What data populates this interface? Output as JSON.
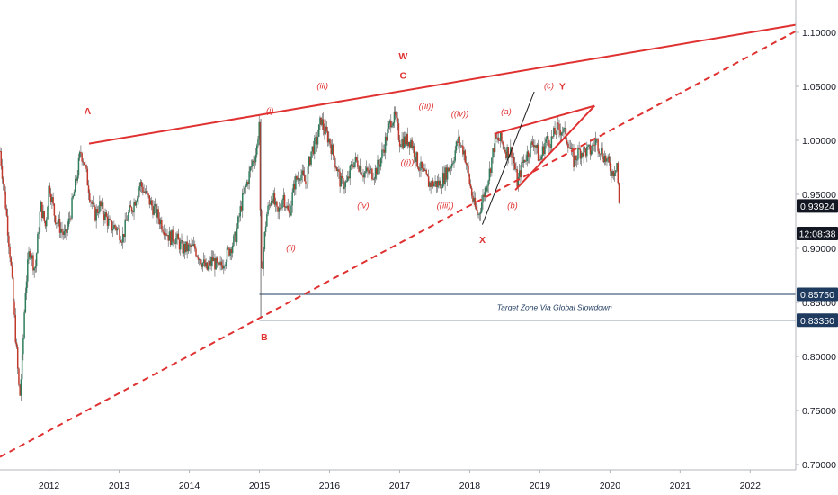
{
  "chart_data": {
    "type": "candlestick",
    "title": "",
    "y_axis": {
      "ticks": [
        "0.70000",
        "0.75000",
        "0.80000",
        "0.85000",
        "0.90000",
        "0.95000",
        "1.00000",
        "1.05000",
        "1.10000"
      ],
      "ylim": [
        0.695,
        1.125
      ]
    },
    "x_axis": {
      "ticks": [
        "2012",
        "2013",
        "2014",
        "2015",
        "2016",
        "2017",
        "2018",
        "2019",
        "2020",
        "2021",
        "2022"
      ],
      "xlim": [
        2011.3,
        2022.65
      ]
    },
    "price_series": [
      [
        2011.3,
        0.99
      ],
      [
        2011.38,
        0.94
      ],
      [
        2011.45,
        0.89
      ],
      [
        2011.52,
        0.82
      ],
      [
        2011.58,
        0.76
      ],
      [
        2011.62,
        0.8
      ],
      [
        2011.66,
        0.86
      ],
      [
        2011.72,
        0.9
      ],
      [
        2011.8,
        0.88
      ],
      [
        2011.88,
        0.94
      ],
      [
        2011.95,
        0.92
      ],
      [
        2012.0,
        0.96
      ],
      [
        2012.08,
        0.93
      ],
      [
        2012.15,
        0.92
      ],
      [
        2012.23,
        0.91
      ],
      [
        2012.3,
        0.93
      ],
      [
        2012.38,
        0.96
      ],
      [
        2012.45,
        0.99
      ],
      [
        2012.5,
        0.98
      ],
      [
        2012.58,
        0.95
      ],
      [
        2012.65,
        0.93
      ],
      [
        2012.72,
        0.94
      ],
      [
        2012.8,
        0.93
      ],
      [
        2012.88,
        0.92
      ],
      [
        2012.95,
        0.92
      ],
      [
        2013.05,
        0.91
      ],
      [
        2013.12,
        0.93
      ],
      [
        2013.2,
        0.94
      ],
      [
        2013.3,
        0.96
      ],
      [
        2013.38,
        0.95
      ],
      [
        2013.46,
        0.94
      ],
      [
        2013.55,
        0.93
      ],
      [
        2013.63,
        0.92
      ],
      [
        2013.72,
        0.91
      ],
      [
        2013.8,
        0.91
      ],
      [
        2013.9,
        0.9
      ],
      [
        2014.0,
        0.9
      ],
      [
        2014.08,
        0.9
      ],
      [
        2014.16,
        0.89
      ],
      [
        2014.25,
        0.88
      ],
      [
        2014.33,
        0.89
      ],
      [
        2014.42,
        0.88
      ],
      [
        2014.5,
        0.89
      ],
      [
        2014.58,
        0.9
      ],
      [
        2014.66,
        0.91
      ],
      [
        2014.74,
        0.94
      ],
      [
        2014.82,
        0.96
      ],
      [
        2014.9,
        0.98
      ],
      [
        2014.96,
        0.99
      ],
      [
        2015.0,
        1.02
      ],
      [
        2015.02,
        0.87
      ],
      [
        2015.06,
        0.9
      ],
      [
        2015.1,
        0.93
      ],
      [
        2015.18,
        0.95
      ],
      [
        2015.26,
        0.93
      ],
      [
        2015.34,
        0.95
      ],
      [
        2015.42,
        0.93
      ],
      [
        2015.5,
        0.96
      ],
      [
        2015.58,
        0.97
      ],
      [
        2015.66,
        0.96
      ],
      [
        2015.74,
        0.99
      ],
      [
        2015.82,
        1.0
      ],
      [
        2015.88,
        1.02
      ],
      [
        2015.92,
        1.01
      ],
      [
        2016.0,
        1.0
      ],
      [
        2016.08,
        0.98
      ],
      [
        2016.16,
        0.96
      ],
      [
        2016.25,
        0.96
      ],
      [
        2016.33,
        0.98
      ],
      [
        2016.4,
        0.98
      ],
      [
        2016.48,
        0.97
      ],
      [
        2016.56,
        0.97
      ],
      [
        2016.64,
        0.97
      ],
      [
        2016.72,
        0.98
      ],
      [
        2016.8,
        1.0
      ],
      [
        2016.88,
        1.02
      ],
      [
        2016.94,
        1.02
      ],
      [
        2017.0,
        1.0
      ],
      [
        2017.08,
        1.0
      ],
      [
        2017.16,
        1.0
      ],
      [
        2017.25,
        0.98
      ],
      [
        2017.33,
        0.97
      ],
      [
        2017.42,
        0.96
      ],
      [
        2017.5,
        0.96
      ],
      [
        2017.58,
        0.96
      ],
      [
        2017.66,
        0.97
      ],
      [
        2017.75,
        0.98
      ],
      [
        2017.83,
        1.0
      ],
      [
        2017.92,
        0.99
      ],
      [
        2018.0,
        0.96
      ],
      [
        2018.06,
        0.94
      ],
      [
        2018.12,
        0.93
      ],
      [
        2018.2,
        0.95
      ],
      [
        2018.28,
        0.97
      ],
      [
        2018.36,
        1.0
      ],
      [
        2018.44,
        1.0
      ],
      [
        2018.52,
        0.99
      ],
      [
        2018.6,
        0.99
      ],
      [
        2018.68,
        0.96
      ],
      [
        2018.76,
        0.98
      ],
      [
        2018.84,
        0.99
      ],
      [
        2018.92,
        1.0
      ],
      [
        2019.0,
        0.98
      ],
      [
        2019.08,
        1.0
      ],
      [
        2019.16,
        1.0
      ],
      [
        2019.24,
        1.01
      ],
      [
        2019.32,
        1.01
      ],
      [
        2019.4,
        1.0
      ],
      [
        2019.48,
        0.98
      ],
      [
        2019.56,
        0.99
      ],
      [
        2019.64,
        0.99
      ],
      [
        2019.72,
        0.99
      ],
      [
        2019.8,
        1.0
      ],
      [
        2019.88,
        0.99
      ],
      [
        2019.96,
        0.98
      ],
      [
        2020.04,
        0.97
      ],
      [
        2020.1,
        0.98
      ],
      [
        2020.13,
        0.939
      ]
    ],
    "lines": [
      {
        "name": "upper-resistance",
        "style": "solid",
        "x1": 2012.57,
        "y1": 0.997,
        "x2": 2022.65,
        "y2": 1.107
      },
      {
        "name": "lower-support",
        "style": "dashed",
        "x1": 2011.3,
        "y1": 0.707,
        "x2": 2022.65,
        "y2": 1.101
      },
      {
        "name": "wedge-upper",
        "style": "solid",
        "x1": 2018.35,
        "y1": 1.006,
        "x2": 2019.78,
        "y2": 1.032
      },
      {
        "name": "wedge-lower",
        "style": "solid",
        "x1": 2018.65,
        "y1": 0.954,
        "x2": 2019.78,
        "y2": 1.032
      },
      {
        "name": "c-wave-line",
        "style": "solid-black",
        "x1": 2018.18,
        "y1": 0.922,
        "x2": 2018.92,
        "y2": 1.045
      }
    ],
    "target_zone": {
      "upper": 0.8575,
      "lower": 0.8335,
      "x_start": 2015.0,
      "label": "Target Zone Via Global Slowdown"
    },
    "price_tags": [
      {
        "value": "0.93924",
        "price": 0.93924,
        "style": "dark"
      },
      {
        "value": "12:08:38",
        "price": 0.91374,
        "style": "dark"
      },
      {
        "value": "0.85750",
        "price": 0.8575,
        "style": "navy"
      },
      {
        "value": "0.83350",
        "price": 0.8335,
        "style": "navy"
      }
    ],
    "annotations": [
      {
        "text": "A",
        "x": 2012.55,
        "y": 1.024,
        "kind": "major"
      },
      {
        "text": "B",
        "x": 2015.07,
        "y": 0.815,
        "kind": "major"
      },
      {
        "text": "W",
        "x": 2017.05,
        "y": 1.075,
        "kind": "major"
      },
      {
        "text": "C",
        "x": 2017.05,
        "y": 1.057,
        "kind": "major"
      },
      {
        "text": "X",
        "x": 2018.18,
        "y": 0.905,
        "kind": "major"
      },
      {
        "text": "Y",
        "x": 2019.32,
        "y": 1.047,
        "kind": "major"
      },
      {
        "text": "(i)",
        "x": 2015.15,
        "y": 1.025,
        "kind": "minor"
      },
      {
        "text": "(ii)",
        "x": 2015.45,
        "y": 0.898,
        "kind": "minor"
      },
      {
        "text": "(iii)",
        "x": 2015.9,
        "y": 1.048,
        "kind": "minor"
      },
      {
        "text": "(iv)",
        "x": 2016.48,
        "y": 0.937,
        "kind": "minor"
      },
      {
        "text": "((i))",
        "x": 2017.11,
        "y": 0.977,
        "kind": "minor"
      },
      {
        "text": "((ii))",
        "x": 2017.38,
        "y": 1.029,
        "kind": "minor"
      },
      {
        "text": "((iii))",
        "x": 2017.65,
        "y": 0.937,
        "kind": "minor"
      },
      {
        "text": "((iv))",
        "x": 2017.86,
        "y": 1.022,
        "kind": "minor"
      },
      {
        "text": "(a)",
        "x": 2018.52,
        "y": 1.024,
        "kind": "minor"
      },
      {
        "text": "(b)",
        "x": 2018.61,
        "y": 0.937,
        "kind": "minor"
      },
      {
        "text": "(c)",
        "x": 2019.13,
        "y": 1.048,
        "kind": "minor"
      }
    ]
  }
}
